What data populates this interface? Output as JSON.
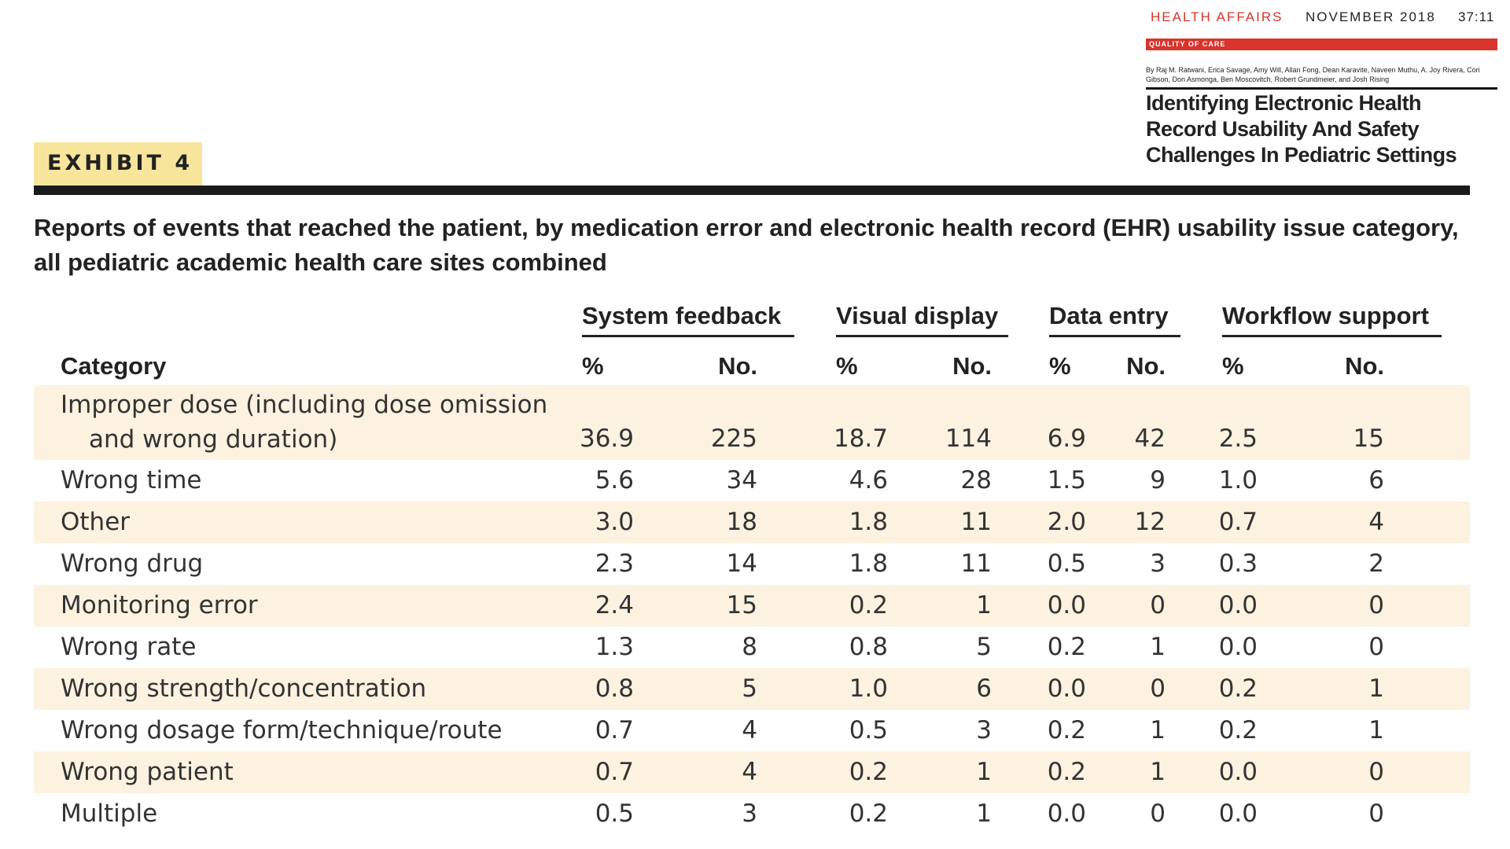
{
  "header": {
    "journal": "HEALTH AFFAIRS",
    "date": "NOVEMBER 2018",
    "page": "37:11",
    "section": "QUALITY OF CARE",
    "authors": "By Raj M. Ratwani, Erica Savage, Amy Will, Allan Fong, Dean Karavite, Naveen Muthu, A. Joy Rivera, Cori Gibson, Don Asmonga, Ben Moscovitch, Robert Grundmeier, and Josh Rising",
    "title": "Identifying Electronic Health Record Usability And Safety Challenges In Pediatric Settings"
  },
  "exhibit": {
    "label": "EXHIBIT 4",
    "title": "Reports of events that reached the patient, by medication error and electronic health record (EHR) usability issue category, all pediatric academic health care sites combined"
  },
  "table": {
    "groups": [
      "System feedback",
      "Visual display",
      "Data entry",
      "Workflow support"
    ],
    "columns": [
      "Category",
      "%",
      "No.",
      "%",
      "No.",
      "%",
      "No.",
      "%",
      "No."
    ],
    "rows": [
      [
        "Improper dose (including dose omission and wrong duration)",
        "36.9",
        "225",
        "18.7",
        "114",
        "6.9",
        "42",
        "2.5",
        "15"
      ],
      [
        "Wrong time",
        "5.6",
        "34",
        "4.6",
        "28",
        "1.5",
        "9",
        "1.0",
        "6"
      ],
      [
        "Other",
        "3.0",
        "18",
        "1.8",
        "11",
        "2.0",
        "12",
        "0.7",
        "4"
      ],
      [
        "Wrong drug",
        "2.3",
        "14",
        "1.8",
        "11",
        "0.5",
        "3",
        "0.3",
        "2"
      ],
      [
        "Monitoring error",
        "2.4",
        "15",
        "0.2",
        "1",
        "0.0",
        "0",
        "0.0",
        "0"
      ],
      [
        "Wrong rate",
        "1.3",
        "8",
        "0.8",
        "5",
        "0.2",
        "1",
        "0.0",
        "0"
      ],
      [
        "Wrong strength/concentration",
        "0.8",
        "5",
        "1.0",
        "6",
        "0.0",
        "0",
        "0.2",
        "1"
      ],
      [
        "Wrong dosage form/technique/route",
        "0.7",
        "4",
        "0.5",
        "3",
        "0.2",
        "1",
        "0.2",
        "1"
      ],
      [
        "Wrong patient",
        "0.7",
        "4",
        "0.2",
        "1",
        "0.2",
        "1",
        "0.0",
        "0"
      ],
      [
        "Multiple",
        "0.5",
        "3",
        "0.2",
        "1",
        "0.0",
        "0",
        "0.0",
        "0"
      ]
    ]
  }
}
